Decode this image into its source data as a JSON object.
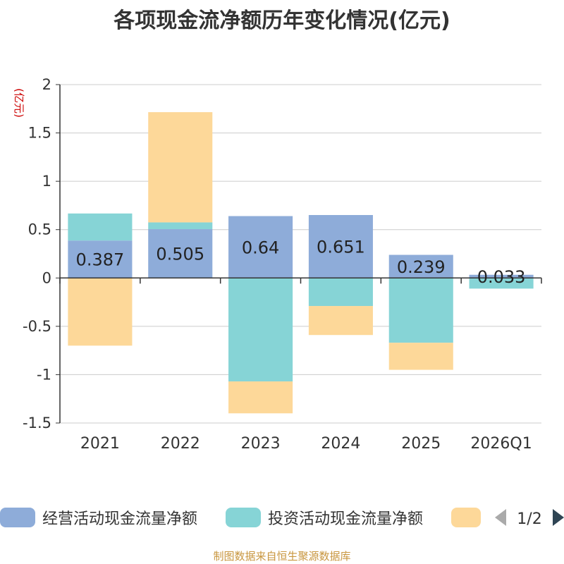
{
  "chart_data": {
    "type": "bar",
    "stacked": true,
    "title": "各项现金流净额历年变化情况(亿元)",
    "ylabel": "(亿元)",
    "xlabel": "",
    "ylim": [
      -1.5,
      2
    ],
    "yticks": [
      2,
      1.5,
      1,
      0.5,
      0,
      -0.5,
      -1,
      -1.5
    ],
    "ytick_labels": [
      "2",
      "1.5",
      "1",
      "0.5",
      "0",
      "-0.5",
      "-1",
      "-1.5"
    ],
    "grid": true,
    "categories": [
      "2021",
      "2022",
      "2023",
      "2024",
      "2025",
      "2026Q1"
    ],
    "series": [
      {
        "name": "经营活动现金流量净额",
        "color": "#8eacd9",
        "values": [
          0.387,
          0.505,
          0.64,
          0.651,
          0.239,
          0.033
        ],
        "labels": [
          "0.387",
          "0.505",
          "0.64",
          "0.651",
          "0.239",
          "0.033"
        ]
      },
      {
        "name": "投资活动现金流量净额",
        "color": "#86d4d6",
        "values": [
          0.28,
          0.07,
          -1.07,
          -0.29,
          -0.67,
          -0.11
        ]
      },
      {
        "name": "",
        "color": "#fdd899",
        "values": [
          -0.7,
          1.14,
          -0.33,
          -0.3,
          -0.28,
          0.0
        ]
      }
    ],
    "legend": {
      "position": "bottom",
      "page": "1/2"
    }
  },
  "source": "制图数据来自恒生聚源数据库",
  "colors": {
    "axis": "#333333",
    "grid": "#cccccc",
    "unit": "#cc0000",
    "pager_active": "#2f4554",
    "pager_inactive": "#aaaaaa"
  }
}
